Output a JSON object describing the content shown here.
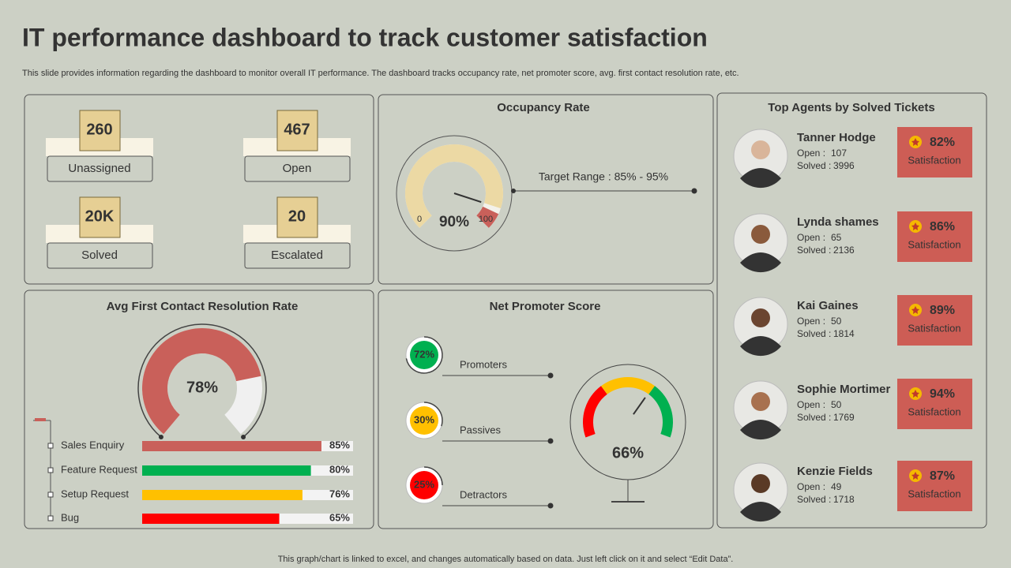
{
  "header": {
    "title": "IT performance dashboard to track customer satisfaction",
    "subtitle": "This slide provides information regarding the dashboard to monitor overall IT  performance. The dashboard tracks occupancy rate, net promoter score, avg. first contact resolution rate, etc."
  },
  "kpis": [
    {
      "value": "260",
      "label": "Unassigned"
    },
    {
      "value": "467",
      "label": "Open"
    },
    {
      "value": "20K",
      "label": "Solved"
    },
    {
      "value": "20",
      "label": "Escalated"
    }
  ],
  "occupancy": {
    "title": "Occupancy Rate",
    "value": 90,
    "value_label": "90%",
    "min": 0,
    "max": 100,
    "target": "Target Range : 85% - 95%"
  },
  "fcr": {
    "title": "Avg First Contact Resolution Rate",
    "value": 78,
    "value_label": "78%",
    "lim": [
      0,
      100
    ],
    "categories": [
      "Sales Enquiry",
      "Feature Request",
      "Setup Request",
      "Bug"
    ],
    "values": [
      85,
      80,
      76,
      65
    ],
    "value_labels": [
      "85%",
      "80%",
      "76%",
      "65%"
    ],
    "colors": [
      "#c9605a",
      "#00b050",
      "#ffc000",
      "#ff0000"
    ]
  },
  "nps": {
    "title": "Net Promoter Score",
    "lim": [
      0,
      100
    ],
    "categories": [
      "Promoters",
      "Passives",
      "Detractors"
    ],
    "values": [
      72,
      30,
      25
    ],
    "value_labels": [
      "72%",
      "30%",
      "25%"
    ],
    "colors": [
      "#00b050",
      "#ffc000",
      "#ff0000"
    ],
    "score": 66,
    "score_label": "66%"
  },
  "agents": {
    "title": "Top Agents by Solved Tickets",
    "open_label": "Open  :",
    "solved_label": "Solved  :",
    "satisfaction_label": "Satisfaction",
    "rows": [
      {
        "name": "Tanner Hodge",
        "open": 107,
        "solved": 3996,
        "satisfaction": "82%"
      },
      {
        "name": "Lynda shames",
        "open": 65,
        "solved": 2136,
        "satisfaction": "86%"
      },
      {
        "name": "Kai Gaines",
        "open": 50,
        "solved": 1814,
        "satisfaction": "89%"
      },
      {
        "name": "Sophie Mortimer",
        "open": 50,
        "solved": 1769,
        "satisfaction": "94%"
      },
      {
        "name": "Kenzie Fields",
        "open": 49,
        "solved": 1718,
        "satisfaction": "87%"
      }
    ]
  },
  "footer": "This graph/chart is linked to excel,  and changes automatically based on data. Just left click on it and select “Edit Data”."
}
